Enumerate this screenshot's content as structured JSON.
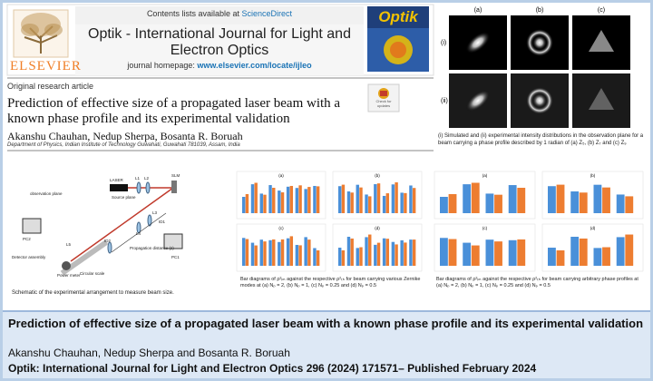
{
  "header": {
    "availability_prefix": "Contents lists available at",
    "availability_link": "ScienceDirect",
    "journal": "Optik - International Journal for Light and Electron Optics",
    "homepage_prefix": "journal homepage:",
    "homepage_link": "www.elsevier.com/locate/ijleo",
    "publisher": "ELSEVIER",
    "cover_title": "Optik",
    "badge": "Check for updates"
  },
  "article": {
    "type": "Original research article",
    "title": "Prediction of effective size of a propagated laser beam with a known phase profile and its experimental validation",
    "authors": "Akanshu Chauhan, Nedup Sherpa, Bosanta R. Boruah",
    "affiliation": "Department of Physics, Indian Institute of Technology Guwahati, Guwahati 781039, Assam, India"
  },
  "intensity_figure": {
    "column_labels": [
      "(a)",
      "(b)",
      "(c)"
    ],
    "row_labels": [
      "(i)",
      "(ii)"
    ],
    "caption": "(i) Simulated and (ii) experimental intensity distributions in the observation plane for a beam carrying a phase profile described by 1 radian of (a) Z₅, (b) Z₇ and (c) Z₉"
  },
  "setup_figure": {
    "labels": [
      "LASER",
      "L1",
      "L2",
      "SLM",
      "Source plane",
      "L3",
      "ID1",
      "L4",
      "ID2",
      "L5",
      "observation plane",
      "PC1",
      "PC2",
      "Detector assembly",
      "Power meter",
      "Circular scale",
      "Propagation distance (z)"
    ],
    "caption": "Schematic of the experimental arrangement to measure beam size."
  },
  "zernike_bars": {
    "panel_labels": [
      "(a)",
      "(b)",
      "(c)",
      "(d)"
    ],
    "caption": "Bar diagrams of ρ²ᵢₘ against the respective ρ²ₜₕ for beam carrying various Zernike modes at (a) Nₚ = 2, (b) Nₚ = 1, (c) Nₚ = 0.25 and (d) Nₚ = 0.5"
  },
  "arbitrary_bars": {
    "panel_labels": [
      "(a)",
      "(b)",
      "(c)",
      "(d)"
    ],
    "caption": "Bar diagrams of ρ²ᵢₘ against the respective ρ²ₜₕ for beam carrying arbitrary phase profiles at (a) Nₚ = 2, (b) Nₚ = 1, (c) Nₚ = 0.25 and (d) Nₚ = 0.5"
  },
  "footer": {
    "title": "Prediction of effective size of a propagated laser beam with a known phase profile and its experimental validation",
    "authors": "Akanshu Chauhan, Nedup Sherpa and Bosanta R. Boruah",
    "citation": "Optik: International Journal for Light and Electron Optics 296 (2024) 171571– Published February 2024"
  }
}
